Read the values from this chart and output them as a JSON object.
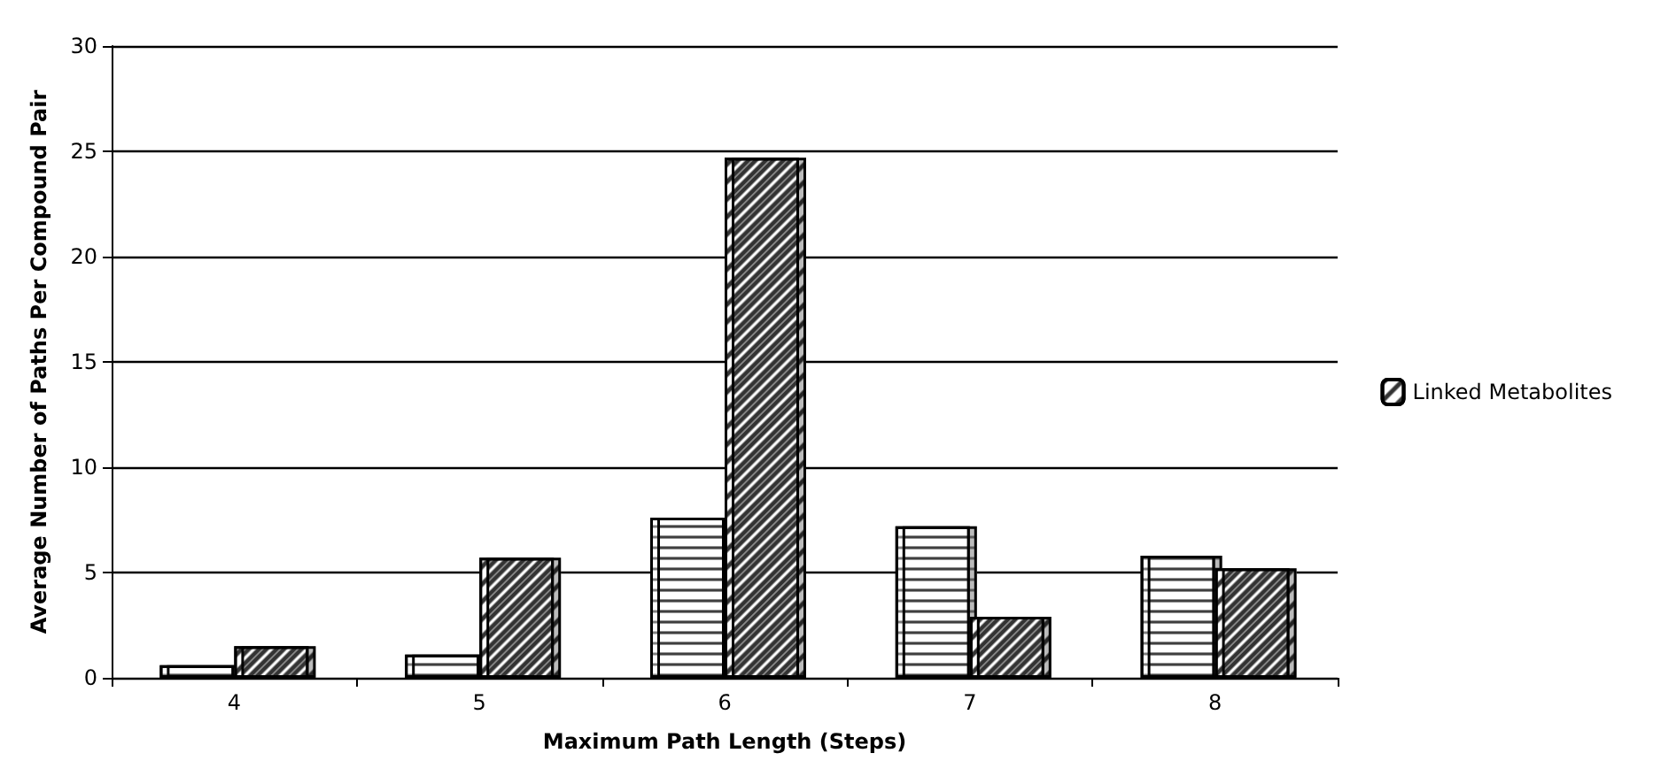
{
  "chart_data": {
    "type": "bar",
    "xlabel": "Maximum Path Length (Steps)",
    "ylabel": "Average Number of Paths Per Compound Pair",
    "categories": [
      "4",
      "5",
      "6",
      "7",
      "8"
    ],
    "series": [
      {
        "color": "#ffffff",
        "values": [
          0.6,
          1.1,
          7.6,
          7.2,
          5.8
        ]
      },
      {
        "name": "Linked Metabolites",
        "color": "#ffffff",
        "values": [
          1.5,
          5.7,
          24.7,
          2.9,
          5.2
        ]
      }
    ],
    "ylim": [
      0,
      30
    ],
    "yticks": [
      0,
      5,
      10,
      15,
      20,
      25,
      30
    ],
    "grid": "y",
    "legend": "right"
  }
}
